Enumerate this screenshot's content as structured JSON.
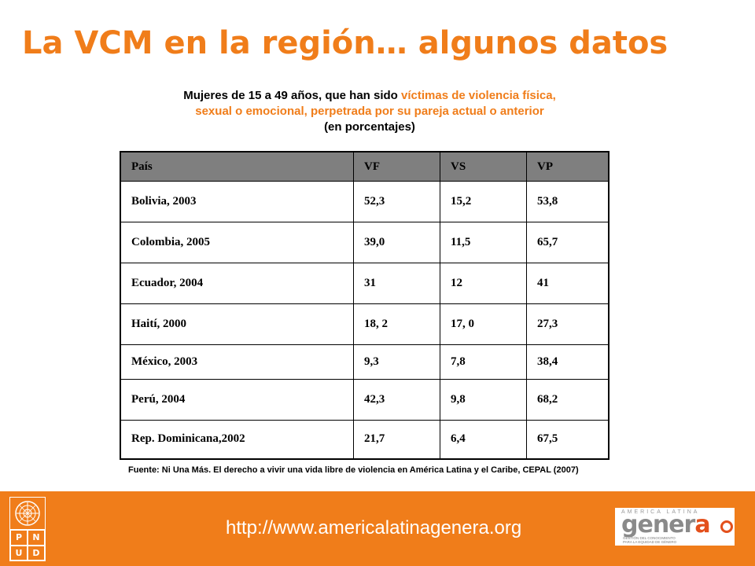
{
  "slide": {
    "title": "La VCM en la región… algunos datos"
  },
  "subtitle": {
    "line1_before": "Mujeres de 15 a 49 años, que han sido ",
    "line1_highlight": "víctimas de violencia física,",
    "line2_highlight": "sexual o emocional, perpetrada por su pareja actual o anterior",
    "line3": "(en porcentajes)"
  },
  "table": {
    "headers": [
      "País",
      "VF",
      "VS",
      "VP"
    ],
    "rows": [
      [
        "Bolivia, 2003",
        "52,3",
        "15,2",
        "53,8"
      ],
      [
        "Colombia, 2005",
        "39,0",
        "11,5",
        "65,7"
      ],
      [
        "Ecuador, 2004",
        "31",
        "12",
        "41"
      ],
      [
        "Haití, 2000",
        "18, 2",
        "17, 0",
        "27,3"
      ],
      [
        "México, 2003",
        "9,3",
        "7,8",
        "38,4"
      ],
      [
        "Perú, 2004",
        "42,3",
        "9,8",
        "68,2"
      ],
      [
        "Rep. Dominicana,2002",
        "21,7",
        "6,4",
        "67,5"
      ]
    ]
  },
  "footnote": "Fuente: Ni Una Más. El derecho a vivir una vida libre de violencia en América Latina y el Caribe, CEPAL (2007)",
  "footer": {
    "url": "http://www.americalatinagenera.org",
    "background_color": "#f07d1a",
    "undp_logo": {
      "letters": [
        "P",
        "N",
        "U",
        "D"
      ],
      "emblem_icon": "un-emblem-icon"
    },
    "genera_logo": {
      "top_text": "AMERICA LATINA",
      "word_main": "gener",
      "word_accent": "a",
      "subtext_line1": "GESTIÓN DEL CONOCIMIENTO",
      "subtext_line2": "PARA LA EQUIDAD DE GÉNERO",
      "icon": "venus-symbol-icon"
    }
  },
  "colors": {
    "accent": "#f07d1a",
    "table_header": "#7f7f7f"
  }
}
